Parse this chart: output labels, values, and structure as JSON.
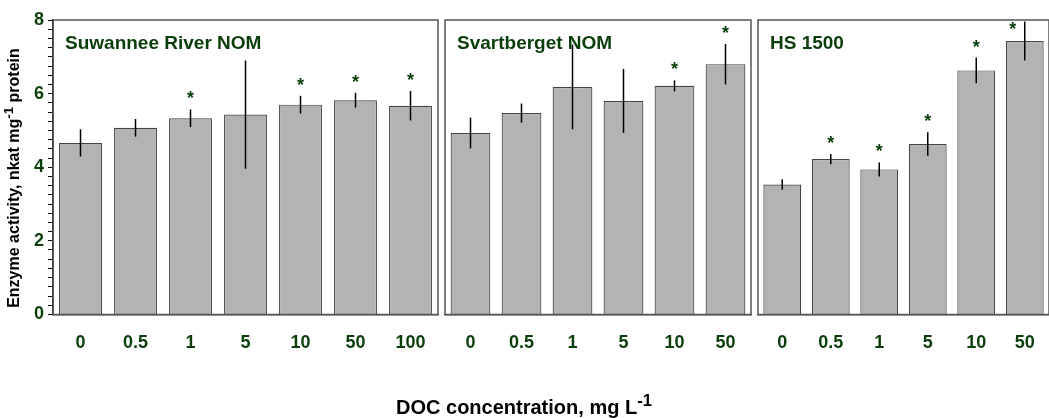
{
  "chart_data": [
    {
      "type": "bar",
      "title": "Suwannee River NOM",
      "ylabel": "Enzyme activity, nkat mg$^{-1}$ protein",
      "categories": [
        "0",
        "0.5",
        "1",
        "5",
        "10",
        "50",
        "100"
      ],
      "values": [
        4.66,
        5.07,
        5.33,
        5.43,
        5.7,
        5.82,
        5.67
      ],
      "errors": [
        0.37,
        0.24,
        0.24,
        1.47,
        0.24,
        0.2,
        0.4
      ],
      "color": "#b3b3b3",
      "ylim": [
        0,
        8
      ],
      "yticks": [
        0,
        {
          "value": 0.25,
          "label": null
        },
        {
          "value": 0.5,
          "label": null
        },
        {
          "value": 0.75,
          "label": null
        },
        {
          "value": 1,
          "label": null
        },
        {
          "value": 1.25,
          "label": null
        },
        {
          "value": 1.5,
          "label": null
        },
        {
          "value": 1.75,
          "label": null
        },
        2,
        {
          "value": 2.25,
          "label": null
        },
        {
          "value": 2.5,
          "label": null
        },
        {
          "value": 2.75,
          "label": null
        },
        {
          "value": 3,
          "label": null
        },
        {
          "value": 3.25,
          "label": null
        },
        {
          "value": 3.5,
          "label": null
        },
        {
          "value": 3.75,
          "label": null
        },
        4,
        {
          "value": 4.25,
          "label": null
        },
        {
          "value": 4.5,
          "label": null
        },
        {
          "value": 4.75,
          "label": null
        },
        {
          "value": 5,
          "label": null
        },
        {
          "value": 5.25,
          "label": null
        },
        {
          "value": 5.5,
          "label": null
        },
        {
          "value": 5.75,
          "label": null
        },
        6,
        {
          "value": 6.25,
          "label": null
        },
        {
          "value": 6.5,
          "label": null
        },
        {
          "value": 6.75,
          "label": null
        },
        {
          "value": 7,
          "label": null
        },
        {
          "value": 7.25,
          "label": null
        },
        {
          "value": 7.5,
          "label": null
        },
        {
          "value": 7.75,
          "label": null
        },
        8
      ],
      "annotations": [
        {
          "text": "*",
          "x": "1",
          "y": 5.33
        },
        {
          "text": "*",
          "x": "10",
          "y": 5.7
        },
        {
          "text": "*",
          "x": "50",
          "y": 5.82
        },
        {
          "text": "*",
          "x": "100",
          "y": 5.67
        }
      ],
      "grid": false,
      "legend": false
    },
    {
      "type": "bar",
      "title": "Svartberget NOM",
      "xlabel": "DOC concentration, mg L$^{-1}$",
      "categories": [
        "0",
        "0.5",
        "1",
        "5",
        "10",
        "50"
      ],
      "values": [
        4.93,
        5.47,
        6.18,
        5.8,
        6.21,
        6.8
      ],
      "errors": [
        0.42,
        0.26,
        1.15,
        0.87,
        0.15,
        0.55
      ],
      "color": "#b3b3b3",
      "ylim": [
        0,
        8
      ],
      "tick_labels": "x",
      "annotations": [
        {
          "text": "*",
          "x": "10",
          "y": 6.21
        },
        {
          "text": "*",
          "x": "50",
          "y": 6.8
        }
      ],
      "grid": false,
      "legend": false
    },
    {
      "type": "bar",
      "title": "HS 1500",
      "categories": [
        "0",
        "0.5",
        "1",
        "5",
        "10",
        "50"
      ],
      "values": [
        3.53,
        4.22,
        3.94,
        4.63,
        6.63,
        7.43
      ],
      "errors": [
        0.14,
        0.14,
        0.19,
        0.32,
        0.35,
        0.53
      ],
      "color": "#b3b3b3",
      "ylim": [
        0,
        8
      ],
      "tick_labels": "x",
      "annotations": [
        {
          "text": "*",
          "x": "0.5",
          "y": 4.22
        },
        {
          "text": "*",
          "x": "1",
          "y": 3.94
        },
        {
          "text": "*",
          "x": "5",
          "y": 4.63
        },
        {
          "text": "*",
          "x": "10",
          "y": 6.63
        },
        {
          "text": "*",
          "x": "50",
          "y": 7.43
        }
      ],
      "grid": false,
      "legend": false
    }
  ]
}
